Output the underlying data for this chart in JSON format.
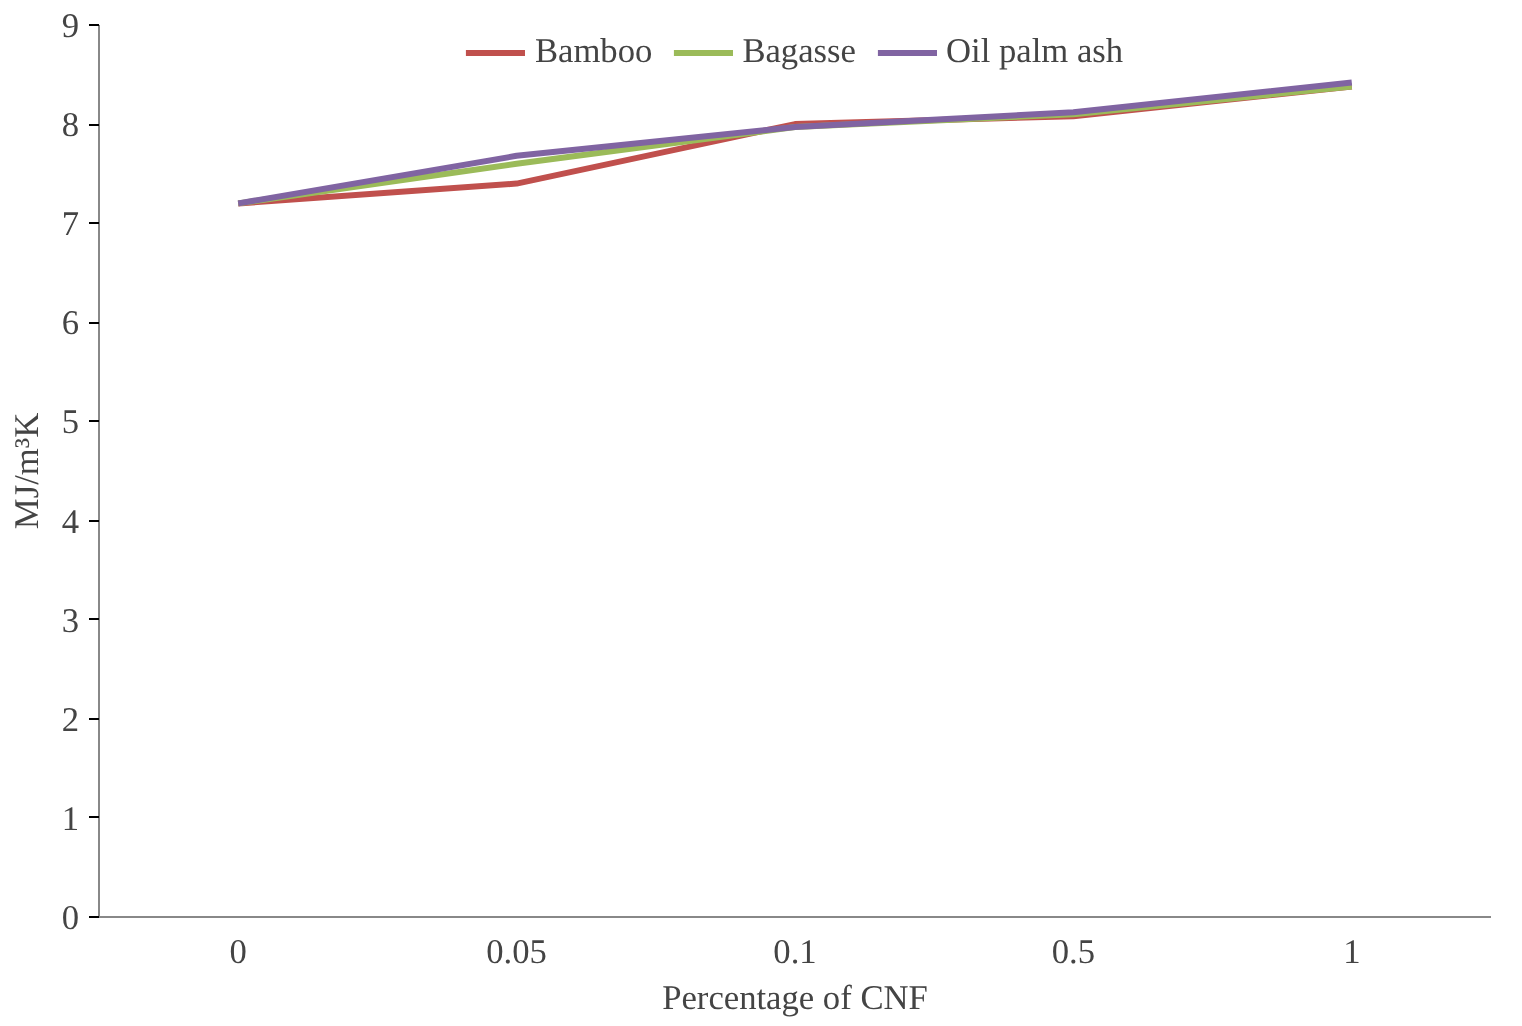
{
  "chart_data": {
    "type": "line",
    "xlabel": "Percentage of CNF",
    "ylabel": "MJ/m³K",
    "categories": [
      "0",
      "0.05",
      "0.1",
      "0.5",
      "1"
    ],
    "series": [
      {
        "name": "Bamboo",
        "color": "#c0504d",
        "values": [
          7.2,
          7.4,
          8.0,
          8.08,
          8.38
        ]
      },
      {
        "name": "Bagasse",
        "color": "#9bbb59",
        "values": [
          7.2,
          7.6,
          7.97,
          8.1,
          8.38
        ]
      },
      {
        "name": "Oil palm ash",
        "color": "#8064a2",
        "values": [
          7.2,
          7.68,
          7.97,
          8.12,
          8.42
        ]
      }
    ],
    "ylim": [
      0,
      9
    ],
    "yticks": [
      0,
      1,
      2,
      3,
      4,
      5,
      6,
      7,
      8,
      9
    ],
    "grid": false,
    "legend": "top",
    "marker": "none",
    "line_style": "solid"
  }
}
